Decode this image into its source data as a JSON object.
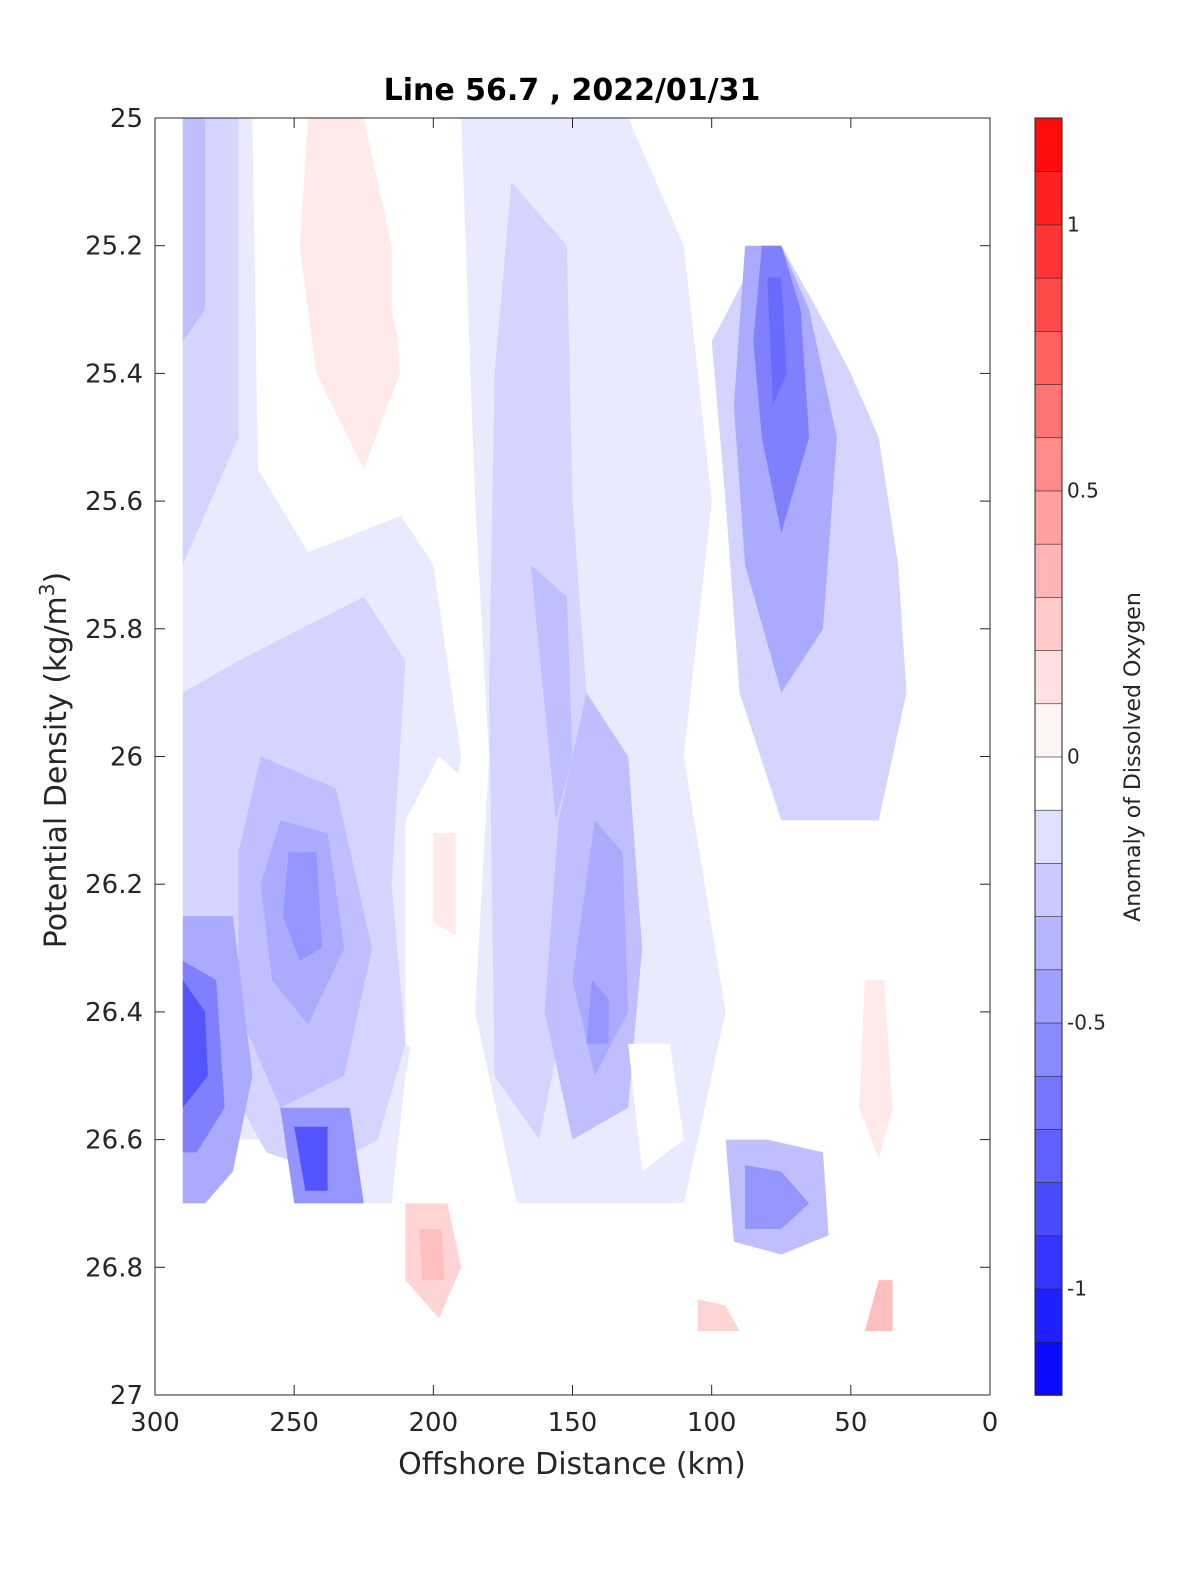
{
  "chart_data": {
    "type": "heatmap",
    "title": "Line 56.7 , 2022/01/31",
    "xlabel": "Offshore Distance (km)",
    "ylabel_main": "Potential Density (kg/m",
    "ylabel_sup": "3",
    "ylabel_close": ")",
    "xlim": [
      300,
      0
    ],
    "ylim": [
      25,
      27
    ],
    "x_reversed": true,
    "y_reversed": true,
    "xticks": [
      300,
      250,
      200,
      150,
      100,
      50,
      0
    ],
    "xtick_labels": [
      "300",
      "250",
      "200",
      "150",
      "100",
      "50",
      "0"
    ],
    "yticks": [
      25,
      25.2,
      25.4,
      25.6,
      25.8,
      26,
      26.2,
      26.4,
      26.6,
      26.8,
      27
    ],
    "ytick_labels": [
      "25",
      "25.2",
      "25.4",
      "25.6",
      "25.8",
      "26",
      "26.2",
      "26.4",
      "26.6",
      "26.8",
      "27"
    ],
    "colorbar": {
      "label": "Anomaly of Dissolved Oxygen",
      "range": [
        -1.2,
        1.2
      ],
      "step": 0.1,
      "ticks": [
        1,
        0.5,
        0,
        -0.5,
        -1
      ],
      "tick_labels": [
        "1",
        "0.5",
        "0",
        "-0.5",
        "-1"
      ],
      "colormap": "blue-white-red"
    },
    "grid": false,
    "regions": [
      {
        "points": [
          [
            290,
            25
          ],
          [
            225,
            25
          ],
          [
            215,
            25.6
          ],
          [
            200,
            25.7
          ],
          [
            190,
            26.0
          ],
          [
            210,
            26.5
          ],
          [
            215,
            26.7
          ],
          [
            240,
            26.7
          ],
          [
            250,
            26.6
          ],
          [
            270,
            26.6
          ],
          [
            290,
            26.7
          ]
        ],
        "value": -0.1
      },
      {
        "points": [
          [
            290,
            25
          ],
          [
            270,
            25
          ],
          [
            270,
            25.5
          ],
          [
            290,
            25.7
          ]
        ],
        "value": -0.2
      },
      {
        "points": [
          [
            290,
            25
          ],
          [
            282,
            25
          ],
          [
            282,
            25.3
          ],
          [
            290,
            25.35
          ]
        ],
        "value": -0.3
      },
      {
        "points": [
          [
            265,
            25
          ],
          [
            222,
            25
          ],
          [
            205,
            25.5
          ],
          [
            210,
            25.62
          ],
          [
            245,
            25.68
          ],
          [
            263,
            25.55
          ]
        ],
        "value": 0
      },
      {
        "points": [
          [
            245,
            25
          ],
          [
            225,
            25
          ],
          [
            215,
            25.2
          ],
          [
            212,
            25.4
          ],
          [
            225,
            25.55
          ],
          [
            242,
            25.4
          ],
          [
            248,
            25.2
          ]
        ],
        "value": 0.1
      },
      {
        "points": [
          [
            215,
            25
          ],
          [
            178,
            25
          ],
          [
            172,
            25.4
          ],
          [
            180,
            25.9
          ],
          [
            190,
            25.7
          ],
          [
            205,
            25.5
          ],
          [
            215,
            25.3
          ]
        ],
        "value": 0
      },
      {
        "points": [
          [
            270,
            25.85
          ],
          [
            225,
            25.75
          ],
          [
            210,
            25.85
          ],
          [
            215,
            26.2
          ],
          [
            210,
            26.45
          ],
          [
            220,
            26.6
          ],
          [
            240,
            26.65
          ],
          [
            260,
            26.62
          ],
          [
            275,
            26.5
          ],
          [
            290,
            26.3
          ],
          [
            290,
            25.9
          ]
        ],
        "value": -0.2
      },
      {
        "points": [
          [
            262,
            26.0
          ],
          [
            235,
            26.05
          ],
          [
            222,
            26.3
          ],
          [
            232,
            26.5
          ],
          [
            255,
            26.55
          ],
          [
            270,
            26.4
          ],
          [
            270,
            26.15
          ]
        ],
        "value": -0.3
      },
      {
        "points": [
          [
            255,
            26.1
          ],
          [
            238,
            26.12
          ],
          [
            232,
            26.3
          ],
          [
            245,
            26.42
          ],
          [
            258,
            26.35
          ],
          [
            262,
            26.2
          ]
        ],
        "value": -0.4
      },
      {
        "points": [
          [
            252,
            26.15
          ],
          [
            242,
            26.15
          ],
          [
            240,
            26.3
          ],
          [
            248,
            26.32
          ],
          [
            254,
            26.25
          ]
        ],
        "value": -0.5
      },
      {
        "points": [
          [
            290,
            26.25
          ],
          [
            272,
            26.25
          ],
          [
            265,
            26.5
          ],
          [
            272,
            26.65
          ],
          [
            282,
            26.7
          ],
          [
            290,
            26.7
          ]
        ],
        "value": -0.4
      },
      {
        "points": [
          [
            290,
            26.32
          ],
          [
            278,
            26.35
          ],
          [
            275,
            26.55
          ],
          [
            285,
            26.62
          ],
          [
            290,
            26.62
          ]
        ],
        "value": -0.6
      },
      {
        "points": [
          [
            290,
            26.35
          ],
          [
            282,
            26.4
          ],
          [
            281,
            26.5
          ],
          [
            290,
            26.55
          ]
        ],
        "value": -0.8
      },
      {
        "points": [
          [
            255,
            26.55
          ],
          [
            230,
            26.55
          ],
          [
            225,
            26.7
          ],
          [
            250,
            26.7
          ]
        ],
        "value": -0.5
      },
      {
        "points": [
          [
            250,
            26.58
          ],
          [
            238,
            26.58
          ],
          [
            238,
            26.68
          ],
          [
            246,
            26.68
          ]
        ],
        "value": -0.8
      },
      {
        "points": [
          [
            210,
            26.7
          ],
          [
            195,
            26.7
          ],
          [
            190,
            26.8
          ],
          [
            198,
            26.88
          ],
          [
            210,
            26.82
          ]
        ],
        "value": 0.2
      },
      {
        "points": [
          [
            205,
            26.74
          ],
          [
            197,
            26.74
          ],
          [
            196,
            26.82
          ],
          [
            204,
            26.82
          ]
        ],
        "value": 0.3
      },
      {
        "points": [
          [
            210,
            26.1
          ],
          [
            198,
            26.0
          ],
          [
            185,
            26.05
          ],
          [
            185,
            26.3
          ],
          [
            195,
            26.5
          ],
          [
            210,
            26.45
          ]
        ],
        "value": 0
      },
      {
        "points": [
          [
            200,
            26.12
          ],
          [
            192,
            26.12
          ],
          [
            192,
            26.28
          ],
          [
            200,
            26.26
          ]
        ],
        "value": 0.1
      },
      {
        "points": [
          [
            190,
            25
          ],
          [
            130,
            25
          ],
          [
            110,
            25.2
          ],
          [
            100,
            25.6
          ],
          [
            110,
            26.0
          ],
          [
            95,
            26.4
          ],
          [
            110,
            26.7
          ],
          [
            170,
            26.7
          ],
          [
            185,
            26.4
          ],
          [
            180,
            26.0
          ],
          [
            185,
            25.6
          ]
        ],
        "value": -0.1
      },
      {
        "points": [
          [
            172,
            25.1
          ],
          [
            152,
            25.2
          ],
          [
            150,
            25.6
          ],
          [
            145,
            25.9
          ],
          [
            148,
            26.3
          ],
          [
            162,
            26.6
          ],
          [
            178,
            26.5
          ],
          [
            180,
            25.9
          ],
          [
            178,
            25.4
          ]
        ],
        "value": -0.2
      },
      {
        "points": [
          [
            165,
            25.7
          ],
          [
            152,
            25.75
          ],
          [
            150,
            26.0
          ],
          [
            156,
            26.1
          ]
        ],
        "value": -0.3
      },
      {
        "points": [
          [
            145,
            25.9
          ],
          [
            130,
            26.0
          ],
          [
            125,
            26.3
          ],
          [
            130,
            26.55
          ],
          [
            150,
            26.6
          ],
          [
            160,
            26.4
          ],
          [
            155,
            26.1
          ]
        ],
        "value": -0.3
      },
      {
        "points": [
          [
            142,
            26.1
          ],
          [
            132,
            26.15
          ],
          [
            130,
            26.4
          ],
          [
            142,
            26.5
          ],
          [
            150,
            26.35
          ]
        ],
        "value": -0.4
      },
      {
        "points": [
          [
            143,
            26.35
          ],
          [
            137,
            26.38
          ],
          [
            137,
            26.45
          ],
          [
            145,
            26.45
          ]
        ],
        "value": -0.5
      },
      {
        "points": [
          [
            130,
            26.45
          ],
          [
            115,
            26.45
          ],
          [
            110,
            26.6
          ],
          [
            125,
            26.65
          ]
        ],
        "value": 0
      },
      {
        "points": [
          [
            100,
            25.35
          ],
          [
            82,
            25.2
          ],
          [
            75,
            25.2
          ],
          [
            62,
            25.3
          ],
          [
            50,
            25.4
          ],
          [
            40,
            25.5
          ],
          [
            33,
            25.7
          ],
          [
            30,
            25.9
          ],
          [
            40,
            26.1
          ],
          [
            60,
            26.1
          ],
          [
            75,
            26.1
          ],
          [
            90,
            25.9
          ],
          [
            95,
            25.6
          ]
        ],
        "value": -0.2
      },
      {
        "points": [
          [
            88,
            25.2
          ],
          [
            75,
            25.2
          ],
          [
            65,
            25.3
          ],
          [
            55,
            25.5
          ],
          [
            60,
            25.8
          ],
          [
            75,
            25.9
          ],
          [
            88,
            25.7
          ],
          [
            92,
            25.45
          ]
        ],
        "value": -0.4
      },
      {
        "points": [
          [
            82,
            25.2
          ],
          [
            75,
            25.2
          ],
          [
            68,
            25.3
          ],
          [
            65,
            25.5
          ],
          [
            75,
            25.65
          ],
          [
            82,
            25.5
          ],
          [
            85,
            25.35
          ]
        ],
        "value": -0.6
      },
      {
        "points": [
          [
            80,
            25.25
          ],
          [
            75,
            25.25
          ],
          [
            73,
            25.4
          ],
          [
            78,
            25.45
          ]
        ],
        "value": -0.7
      },
      {
        "points": [
          [
            95,
            26.6
          ],
          [
            80,
            26.6
          ],
          [
            60,
            26.62
          ],
          [
            58,
            26.75
          ],
          [
            75,
            26.78
          ],
          [
            92,
            26.76
          ]
        ],
        "value": -0.3
      },
      {
        "points": [
          [
            88,
            26.64
          ],
          [
            75,
            26.65
          ],
          [
            65,
            26.7
          ],
          [
            75,
            26.74
          ],
          [
            88,
            26.74
          ]
        ],
        "value": -0.5
      },
      {
        "points": [
          [
            45,
            26.35
          ],
          [
            38,
            26.35
          ],
          [
            35,
            26.55
          ],
          [
            40,
            26.63
          ],
          [
            47,
            26.55
          ]
        ],
        "value": 0.1
      },
      {
        "points": [
          [
            105,
            26.85
          ],
          [
            95,
            26.86
          ],
          [
            90,
            26.9
          ],
          [
            105,
            26.9
          ]
        ],
        "value": 0.2
      },
      {
        "points": [
          [
            40,
            26.82
          ],
          [
            35,
            26.82
          ],
          [
            35,
            26.9
          ],
          [
            45,
            26.9
          ]
        ],
        "value": 0.3
      }
    ]
  }
}
